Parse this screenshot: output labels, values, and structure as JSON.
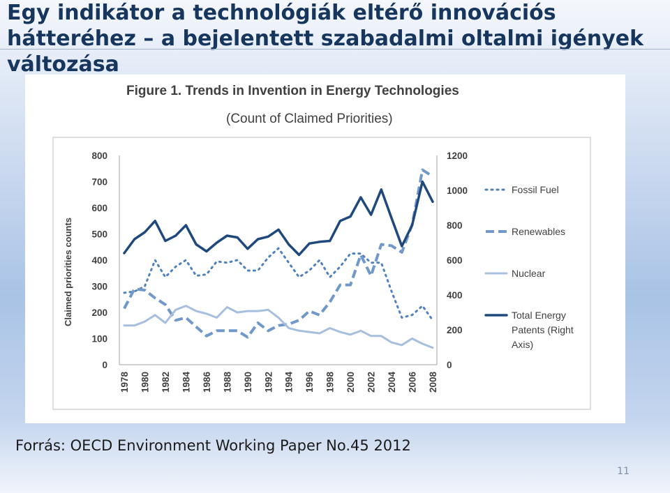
{
  "slide": {
    "title": "Egy indikátor a technológiák eltérő innovációs hátteréhez – a bejelentett szabadalmi oltalmi igények változása",
    "source": "Forrás: OECD Environment Working Paper No.45 2012",
    "page_number": "11"
  },
  "chart_data": {
    "type": "line",
    "title": "Figure 1.  Trends in Invention in Energy Technologies",
    "subtitle": "(Count of Claimed Priorities)",
    "ylabel": "Claimed priorities counts",
    "x": [
      1978,
      1979,
      1980,
      1981,
      1982,
      1983,
      1984,
      1985,
      1986,
      1987,
      1988,
      1989,
      1990,
      1991,
      1992,
      1993,
      1994,
      1995,
      1996,
      1997,
      1998,
      1999,
      2000,
      2001,
      2002,
      2003,
      2004,
      2005,
      2006,
      2007,
      2008
    ],
    "x_tick_labels": [
      "1978",
      "1980",
      "1982",
      "1984",
      "1986",
      "1988",
      "1990",
      "1992",
      "1994",
      "1996",
      "1998",
      "2000",
      "2002",
      "2004",
      "2006",
      "2008"
    ],
    "ylim_left": [
      0,
      800
    ],
    "yticks_left": [
      "0",
      "100",
      "200",
      "300",
      "400",
      "500",
      "600",
      "700",
      "800"
    ],
    "ylim_right": [
      0,
      1200
    ],
    "yticks_right": [
      "0",
      "200",
      "400",
      "600",
      "800",
      "1000",
      "1200"
    ],
    "series": [
      {
        "name": "Fossil Fuel",
        "axis": "left",
        "style": "dotted",
        "color": "#4f81bd",
        "values": [
          275,
          280,
          300,
          400,
          335,
          375,
          400,
          340,
          345,
          395,
          390,
          400,
          360,
          360,
          410,
          445,
          390,
          335,
          360,
          400,
          335,
          375,
          425,
          425,
          390,
          390,
          280,
          180,
          190,
          225,
          170
        ]
      },
      {
        "name": "Renewables",
        "axis": "left",
        "style": "dashed",
        "color": "#7098c8",
        "values": [
          215,
          290,
          285,
          255,
          230,
          170,
          180,
          145,
          110,
          130,
          130,
          130,
          105,
          160,
          130,
          150,
          155,
          170,
          205,
          190,
          240,
          305,
          305,
          420,
          340,
          460,
          455,
          430,
          535,
          745,
          720
        ]
      },
      {
        "name": "Nuclear",
        "axis": "left",
        "style": "solid-light",
        "color": "#a6bfde",
        "values": [
          150,
          150,
          165,
          190,
          160,
          210,
          225,
          205,
          195,
          180,
          220,
          200,
          205,
          205,
          210,
          180,
          140,
          130,
          125,
          120,
          140,
          125,
          115,
          130,
          110,
          110,
          85,
          75,
          100,
          80,
          65
        ]
      },
      {
        "name": "Total Energy Patents (Right Axis)",
        "axis": "right",
        "style": "solid",
        "color": "#1f497d",
        "values": [
          640,
          720,
          760,
          825,
          710,
          740,
          800,
          690,
          650,
          700,
          740,
          730,
          665,
          720,
          735,
          775,
          690,
          630,
          695,
          705,
          710,
          825,
          850,
          960,
          860,
          1005,
          840,
          680,
          800,
          1050,
          935
        ]
      }
    ],
    "legend": [
      {
        "label_lines": [
          "Fossil Fuel"
        ],
        "style": "dotted"
      },
      {
        "label_lines": [
          "Renewables"
        ],
        "style": "dashed"
      },
      {
        "label_lines": [
          "Nuclear"
        ],
        "style": "solid-light"
      },
      {
        "label_lines": [
          "Total Energy",
          "Patents (Right",
          "Axis)"
        ],
        "style": "solid"
      }
    ],
    "legend_position": "right",
    "grid": false
  }
}
